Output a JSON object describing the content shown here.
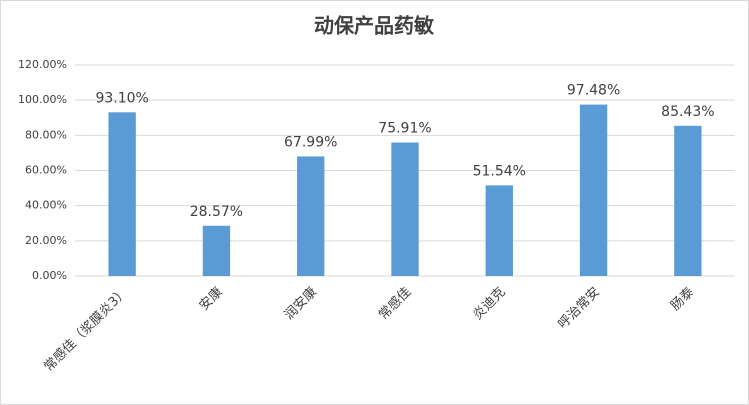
{
  "chart_data": {
    "type": "bar",
    "title": "动保产品药敏",
    "categories": [
      "常感佳（浆膜炎3）",
      "安康",
      "润安康",
      "常感佳",
      "炎迪克",
      "呼治常安",
      "肠泰"
    ],
    "values": [
      93.1,
      28.57,
      67.99,
      75.91,
      51.54,
      97.48,
      85.43
    ],
    "value_labels": [
      "93.10%",
      "28.57%",
      "67.99%",
      "75.91%",
      "51.54%",
      "97.48%",
      "85.43%"
    ],
    "color": "#5b9bd5",
    "ylim": [
      0,
      120
    ],
    "yticks": [
      {
        "value": 0,
        "label": "0.00%"
      },
      {
        "value": 20,
        "label": "20.00%"
      },
      {
        "value": 40,
        "label": "40.00%"
      },
      {
        "value": 60,
        "label": "60.00%"
      },
      {
        "value": 80,
        "label": "80.00%"
      },
      {
        "value": 100,
        "label": "100.00%"
      },
      {
        "value": 120,
        "label": "120.00%"
      }
    ],
    "grid": true
  }
}
